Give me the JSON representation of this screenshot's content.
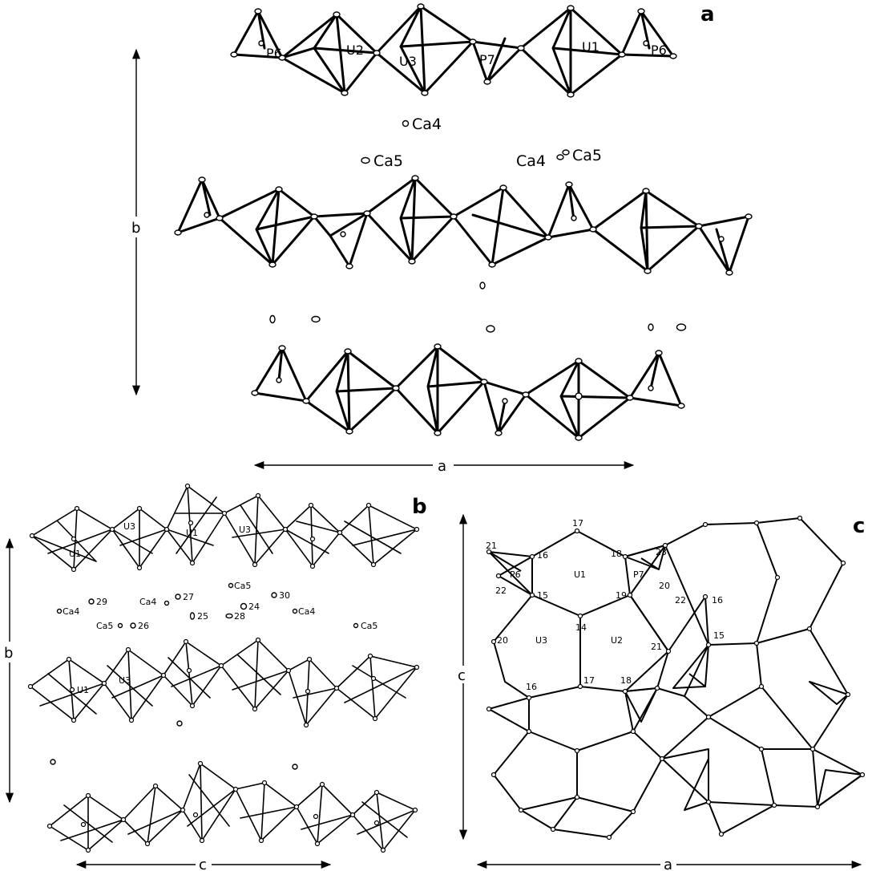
{
  "panels": {
    "a": {
      "letter": "a",
      "labels": {
        "P6_left": "P6",
        "U2": "U2",
        "U3": "U3",
        "P7": "P7",
        "U1": "U1",
        "P6_right": "P6",
        "Ca4_top": "Ca4",
        "Ca5_left": "Ca5",
        "Ca4_right": "Ca4",
        "Ca5_right": "Ca5"
      },
      "axes": {
        "vertical": "b",
        "horizontal": "a"
      }
    },
    "b": {
      "letter": "b",
      "labels": {
        "U1_a": "U1",
        "U3_a": "U3",
        "U1_b": "U1",
        "U3_b": "U3",
        "U1_c": "U1",
        "U3_c": "U3",
        "Ca4_a": "Ca4",
        "O29": "29",
        "Ca4_b": "Ca4",
        "O27": "27",
        "Ca5_a": "Ca5",
        "O24": "24",
        "O30": "30",
        "Ca4_c": "Ca4",
        "Ca5_b": "Ca5",
        "O26": "26",
        "O25": "25",
        "O28": "28",
        "Ca5_c": "Ca5"
      },
      "axes": {
        "vertical": "b",
        "horizontal": "c"
      }
    },
    "c": {
      "letter": "c",
      "labels": {
        "n17a": "17",
        "n18a": "18",
        "n16a": "16",
        "n21": "21",
        "P6": "P6",
        "U1": "U1",
        "P7": "P7",
        "n23": "23",
        "n22a": "22",
        "n15a": "15",
        "n19": "19",
        "n20a": "20",
        "n14": "14",
        "n20b": "20",
        "U3": "U3",
        "U2": "U2",
        "n17b": "17",
        "n22b": "22",
        "n21b": "21",
        "n16b": "16",
        "n15b": "15",
        "n16c": "16",
        "n18b": "18"
      },
      "axes": {
        "vertical": "c",
        "horizontal": "a"
      }
    }
  }
}
